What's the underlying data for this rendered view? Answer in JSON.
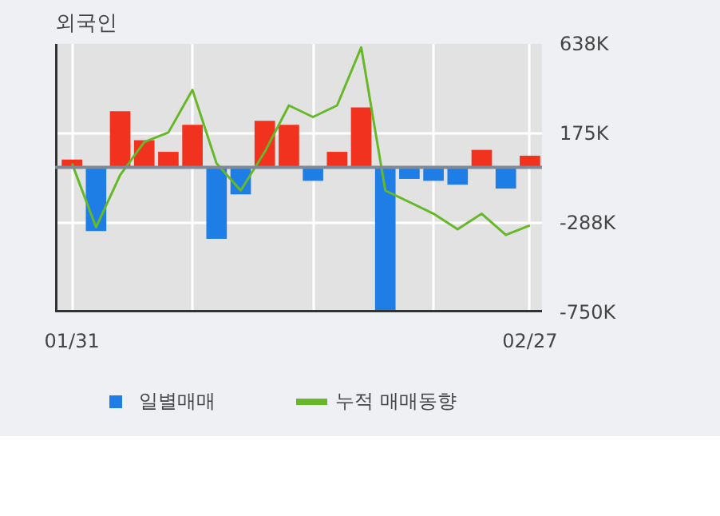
{
  "chart_data": {
    "type": "bar",
    "title": "외국인",
    "categories": [
      "01/31",
      null,
      null,
      null,
      null,
      null,
      null,
      null,
      null,
      null,
      null,
      null,
      null,
      null,
      null,
      null,
      null,
      null,
      null,
      "02/27"
    ],
    "series": [
      {
        "name": "일별매매",
        "colors": [
          "#f0321e",
          "#1e7ee6",
          "#f0321e",
          "#f0321e",
          "#f0321e",
          "#f0321e",
          "#1e7ee6",
          "#1e7ee6",
          "#f0321e",
          "#f0321e",
          "#1e7ee6",
          "#f0321e",
          "#f0321e",
          "#1e7ee6",
          "#1e7ee6",
          "#1e7ee6",
          "#1e7ee6",
          "#f0321e",
          "#1e7ee6",
          "#f0321e"
        ],
        "values": [
          40000,
          -330000,
          290000,
          140000,
          80000,
          220000,
          -370000,
          -140000,
          240000,
          220000,
          -70000,
          80000,
          310000,
          -750000,
          -60000,
          -70000,
          -90000,
          90000,
          -110000,
          60000
        ]
      },
      {
        "name": "누적 매매동향",
        "type": "line",
        "color": "#66b828",
        "values": [
          20000,
          -310000,
          -40000,
          130000,
          180000,
          400000,
          20000,
          -120000,
          80000,
          320000,
          260000,
          320000,
          620000,
          -120000,
          -180000,
          -240000,
          -320000,
          -240000,
          -350000,
          -300000
        ]
      }
    ],
    "ylim": [
      -750000,
      638000
    ],
    "yticks": [
      {
        "value": -750000,
        "label": "-750K"
      },
      {
        "value": -288000,
        "label": "-288K"
      },
      {
        "value": 175000,
        "label": "175K"
      },
      {
        "value": 638000,
        "label": "638K"
      }
    ],
    "grid": true,
    "legend": "bottom"
  }
}
